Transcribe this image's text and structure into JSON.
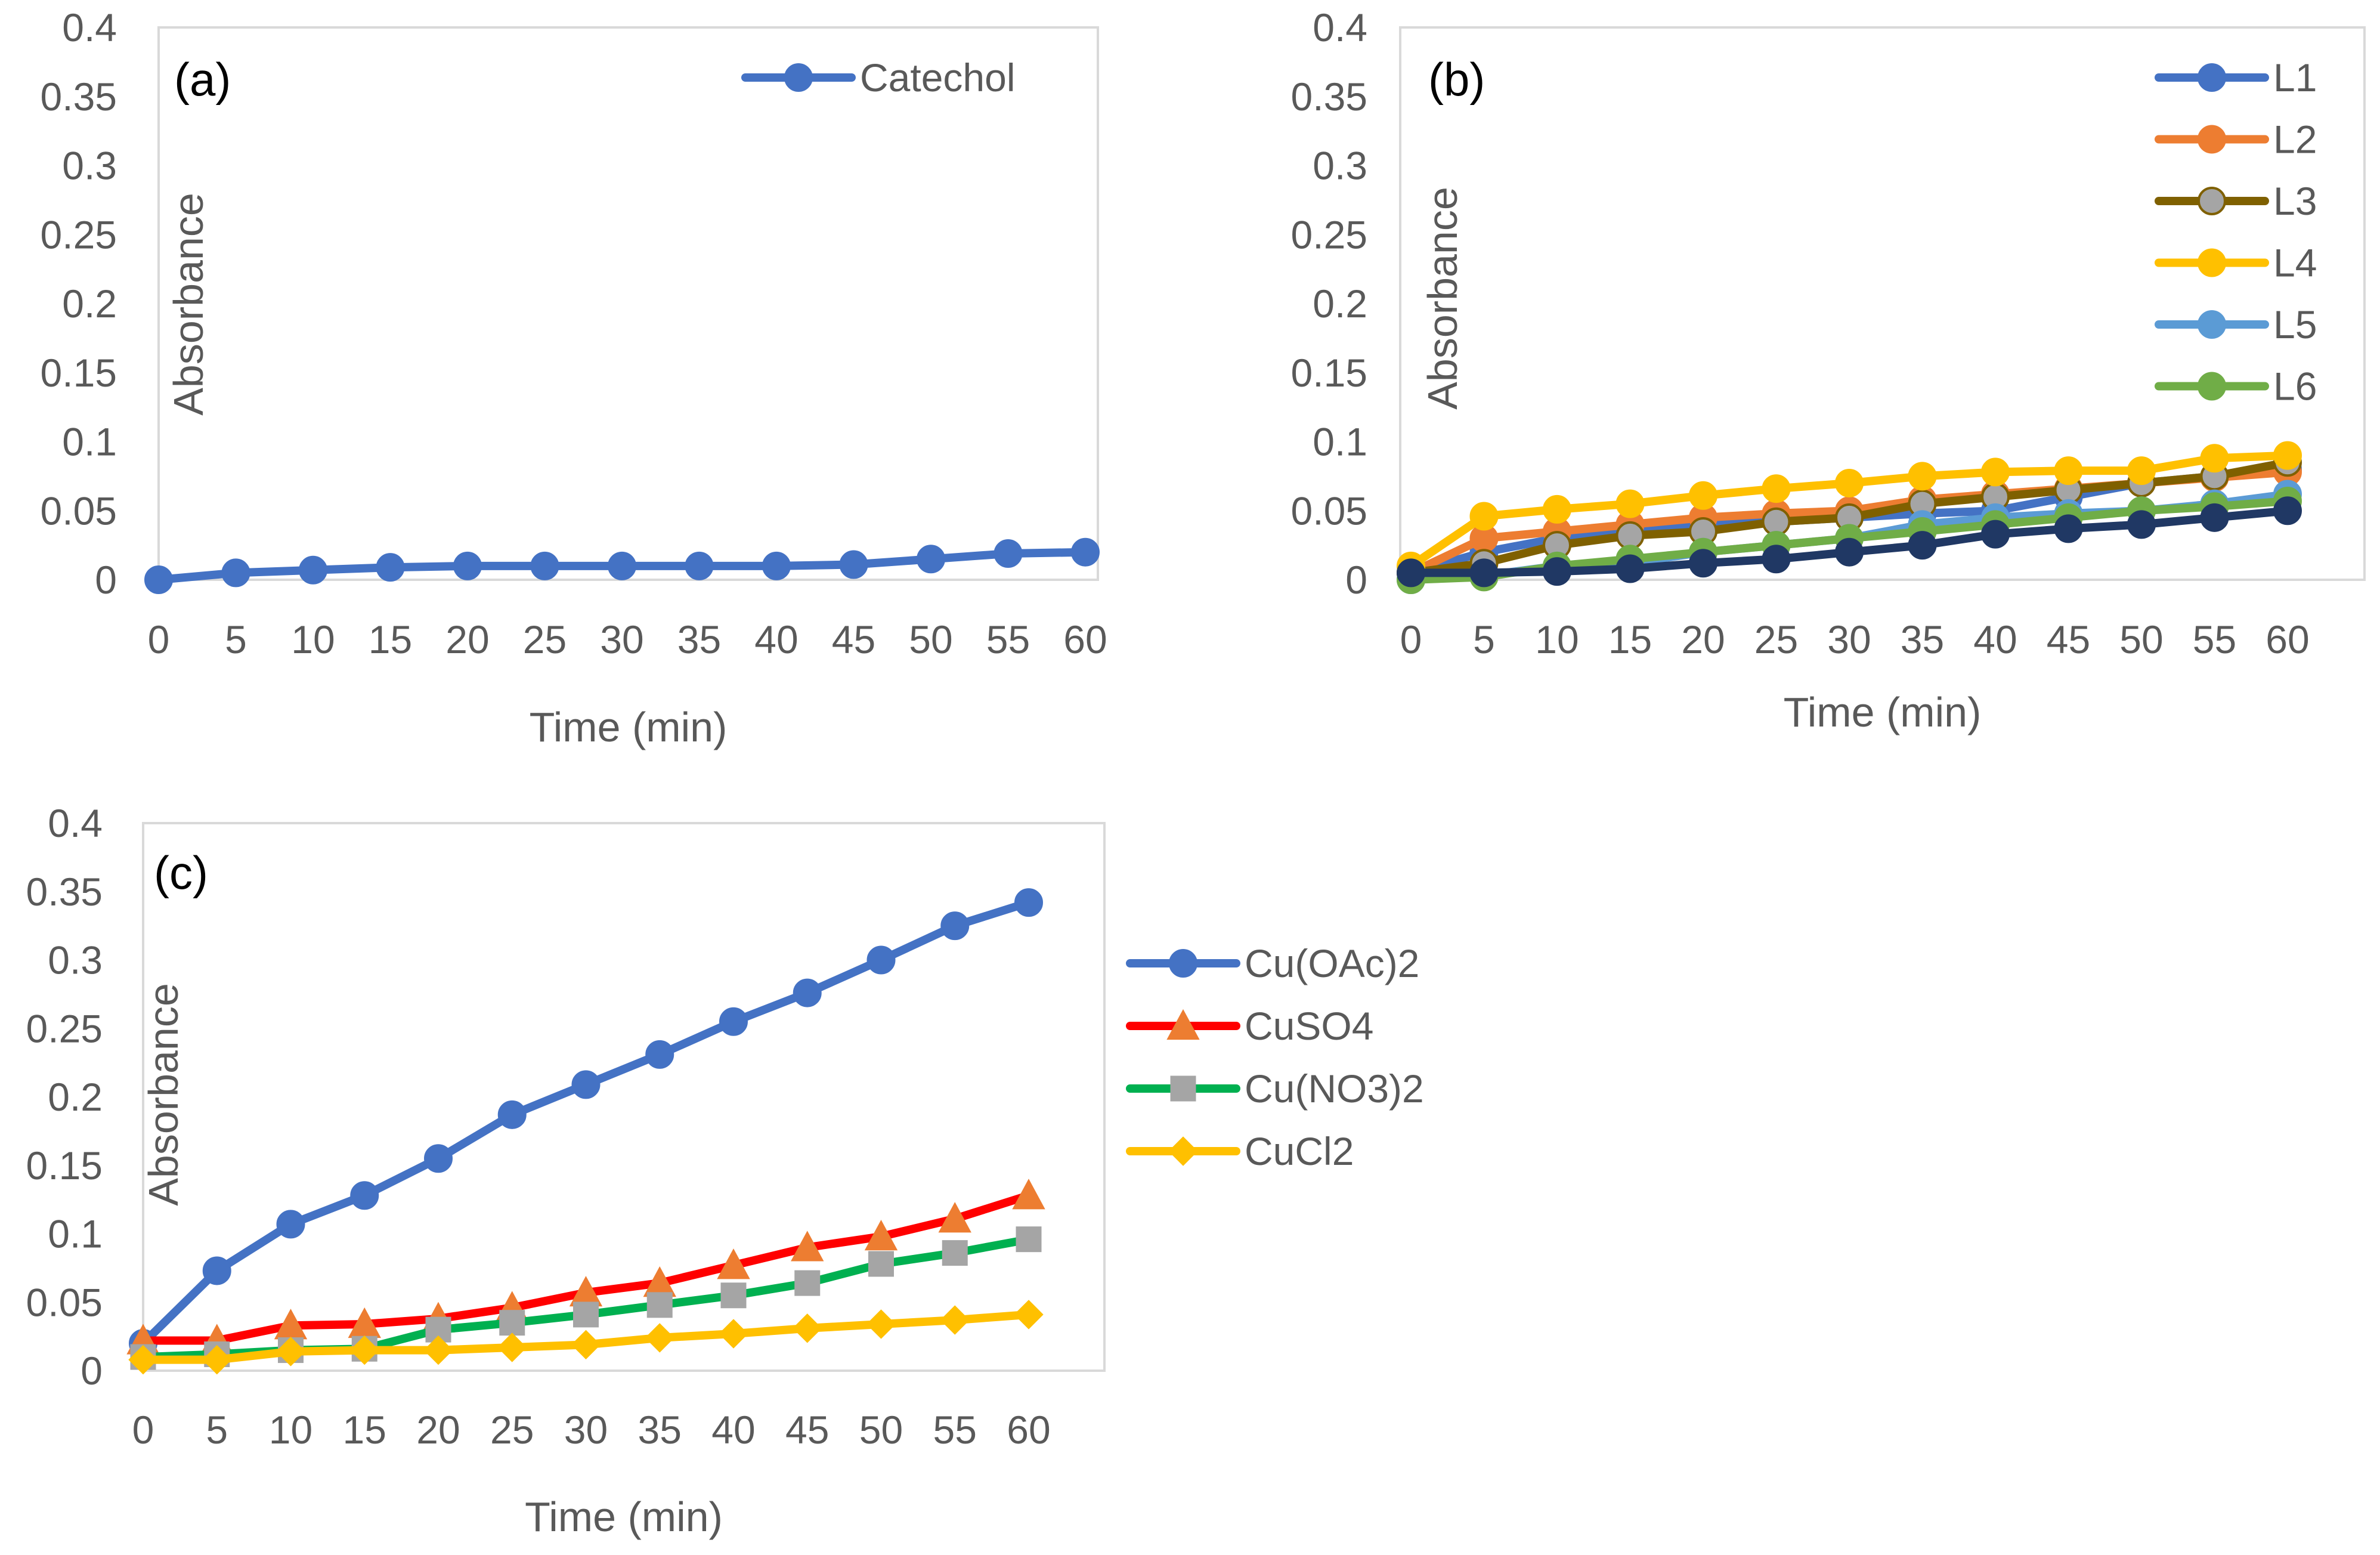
{
  "chart_data": [
    {
      "id": "a",
      "type": "line",
      "panel_label": "(a)",
      "xlabel": "Time (min)",
      "ylabel": "Absorbance",
      "x": [
        0,
        5,
        10,
        15,
        20,
        25,
        30,
        35,
        40,
        45,
        50,
        55,
        60
      ],
      "x_tick_labels": [
        "0",
        "5",
        "10",
        "15",
        "20",
        "25",
        "30",
        "35",
        "40",
        "45",
        "50",
        "55",
        "60"
      ],
      "ylim": [
        0,
        0.4
      ],
      "y_tick_labels": [
        "0",
        "0.05",
        "0.1",
        "0.15",
        "0.2",
        "0.25",
        "0.3",
        "0.35",
        "0.4"
      ],
      "grid": false,
      "legend_position": "top-right",
      "series": [
        {
          "name": "Catechol",
          "color": "#4472C4",
          "marker": "circle",
          "values": [
            0,
            0.005,
            0.007,
            0.009,
            0.01,
            0.01,
            0.01,
            0.01,
            0.01,
            0.011,
            0.015,
            0.019,
            0.02
          ]
        }
      ]
    },
    {
      "id": "b",
      "type": "line",
      "panel_label": "(b)",
      "xlabel": "Time (min)",
      "ylabel": "Absorbance",
      "x": [
        0,
        5,
        10,
        15,
        20,
        25,
        30,
        35,
        40,
        45,
        50,
        55,
        60
      ],
      "x_tick_labels": [
        "0",
        "5",
        "10",
        "15",
        "20",
        "25",
        "30",
        "35",
        "40",
        "45",
        "50",
        "55",
        "60"
      ],
      "ylim": [
        0,
        0.4
      ],
      "y_tick_labels": [
        "0",
        "0.05",
        "0.1",
        "0.15",
        "0.2",
        "0.25",
        "0.3",
        "0.35",
        "0.4"
      ],
      "grid": false,
      "legend_position": "right",
      "series": [
        {
          "name": "L1",
          "color": "#4472C4",
          "marker": "circle",
          "values": [
            0.005,
            0.02,
            0.03,
            0.035,
            0.04,
            0.042,
            0.045,
            0.048,
            0.05,
            0.06,
            0.07,
            0.075,
            0.08
          ]
        },
        {
          "name": "L2",
          "color": "#ED7D31",
          "marker": "circle",
          "values": [
            0.005,
            0.03,
            0.035,
            0.04,
            0.045,
            0.048,
            0.05,
            0.058,
            0.062,
            0.066,
            0.07,
            0.074,
            0.078
          ]
        },
        {
          "name": "L3",
          "color": "#7F6000",
          "marker": "circle",
          "marker_fill": "#A5A5A5",
          "values": [
            0.005,
            0.012,
            0.025,
            0.032,
            0.035,
            0.042,
            0.045,
            0.055,
            0.06,
            0.065,
            0.07,
            0.075,
            0.085
          ]
        },
        {
          "name": "L4",
          "color": "#FFC000",
          "marker": "circle",
          "values": [
            0.01,
            0.046,
            0.051,
            0.055,
            0.061,
            0.066,
            0.07,
            0.075,
            0.078,
            0.079,
            0.079,
            0.088,
            0.09
          ]
        },
        {
          "name": "L5",
          "color": "#5B9BD5",
          "marker": "circle",
          "values": [
            0.0,
            0.003,
            0.01,
            0.012,
            0.02,
            0.025,
            0.03,
            0.04,
            0.045,
            0.048,
            0.05,
            0.055,
            0.062
          ]
        },
        {
          "name": "L6",
          "color": "#70AD47",
          "marker": "circle",
          "values": [
            0.0,
            0.002,
            0.01,
            0.015,
            0.02,
            0.025,
            0.03,
            0.035,
            0.04,
            0.045,
            0.05,
            0.053,
            0.057
          ]
        },
        {
          "name": "",
          "color": "#203864",
          "marker": "circle",
          "values": [
            0.005,
            0.005,
            0.006,
            0.008,
            0.012,
            0.015,
            0.02,
            0.025,
            0.033,
            0.037,
            0.04,
            0.045,
            0.05
          ]
        }
      ]
    },
    {
      "id": "c",
      "type": "line",
      "panel_label": "(c)",
      "xlabel": "Time (min)",
      "ylabel": "Absorbance",
      "x": [
        0,
        5,
        10,
        15,
        20,
        25,
        30,
        35,
        40,
        45,
        50,
        55,
        60
      ],
      "x_tick_labels": [
        "0",
        "5",
        "10",
        "15",
        "20",
        "25",
        "30",
        "35",
        "40",
        "45",
        "50",
        "55",
        "60"
      ],
      "ylim": [
        0,
        0.4
      ],
      "y_tick_labels": [
        "0",
        "0.05",
        "0.1",
        "0.15",
        "0.2",
        "0.25",
        "0.3",
        "0.35",
        "0.4"
      ],
      "grid": false,
      "legend_position": "right",
      "series": [
        {
          "name": "Cu(OAc)2",
          "color": "#4472C4",
          "marker": "circle",
          "values": [
            0.02,
            0.073,
            0.107,
            0.128,
            0.155,
            0.187,
            0.209,
            0.231,
            0.255,
            0.276,
            0.3,
            0.325,
            0.342
          ]
        },
        {
          "name": "CuSO4",
          "color": "#FF0000",
          "marker": "triangle",
          "marker_fill": "#ED7D31",
          "values": [
            0.022,
            0.022,
            0.033,
            0.034,
            0.038,
            0.046,
            0.057,
            0.064,
            0.077,
            0.09,
            0.098,
            0.111,
            0.128
          ]
        },
        {
          "name": "Cu(NO3)2",
          "color": "#00B050",
          "marker": "square",
          "marker_fill": "#A5A5A5",
          "values": [
            0.01,
            0.012,
            0.015,
            0.016,
            0.03,
            0.035,
            0.041,
            0.048,
            0.055,
            0.064,
            0.078,
            0.086,
            0.096
          ]
        },
        {
          "name": "CuCl2",
          "color": "#FFC000",
          "marker": "diamond",
          "values": [
            0.008,
            0.008,
            0.014,
            0.015,
            0.015,
            0.017,
            0.019,
            0.024,
            0.027,
            0.031,
            0.034,
            0.037,
            0.041
          ]
        }
      ]
    }
  ]
}
